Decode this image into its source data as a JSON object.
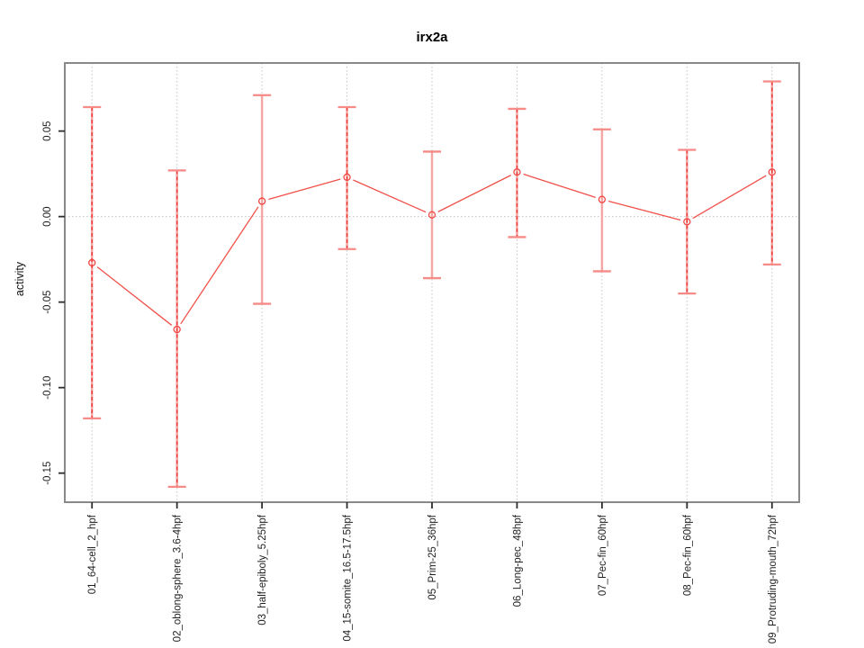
{
  "figure": {
    "title": "irx2a",
    "ylabel": "activity"
  },
  "chart_data": {
    "type": "line",
    "title": "irx2a",
    "xlabel": "",
    "ylabel": "activity",
    "legend": "none",
    "grid": "dotted vertical line at each category; dotted horizontal line at y=0",
    "categories": [
      "01_64-cell_2_hpf",
      "02_oblong-sphere_3.6-4hpf",
      "03_half-epiboly_5.25hpf",
      "04_15-somite_16.5-17.5hpf",
      "05_Prim-25_36hpf",
      "06_Long-pec_48hpf",
      "07_Pec-fin_60hpf",
      "08_Pec-fin_60hpf",
      "09_Protruding-mouth_72hpf"
    ],
    "series": [
      {
        "name": "mean",
        "values": [
          -0.027,
          -0.066,
          0.009,
          0.023,
          0.001,
          0.026,
          0.01,
          -0.003,
          0.026
        ]
      },
      {
        "name": "ci_lower",
        "values": [
          -0.118,
          -0.158,
          -0.051,
          -0.019,
          -0.036,
          -0.012,
          -0.032,
          -0.045,
          -0.028
        ]
      },
      {
        "name": "ci_upper",
        "values": [
          0.064,
          0.027,
          0.071,
          0.064,
          0.038,
          0.063,
          0.051,
          0.039,
          0.079
        ]
      }
    ],
    "error_bar_styles": [
      "dashed",
      "dashed",
      "solid",
      "dashed",
      "solid",
      "dashed",
      "solid",
      "dashed",
      "dashed"
    ],
    "y_ticks": [
      "0.05",
      "0.00",
      "-0.05",
      "-0.10",
      "-0.15"
    ],
    "y_tick_values": [
      0.05,
      0.0,
      -0.05,
      -0.1,
      -0.15
    ],
    "ylim": [
      -0.167,
      0.0898
    ],
    "xlim": [
      0.68,
      9.32
    ],
    "marker": "open-circle",
    "colors": {
      "line": "#f0504a",
      "marker": "#ef4642",
      "error_solid": "#f5a5a2",
      "error_dash": "#ee3f3f",
      "error_cap": "#f58a86",
      "grid": "#c4c4c4",
      "box": "#898989",
      "tick": "#2e2e2e",
      "text": "#1f1f1f"
    }
  }
}
